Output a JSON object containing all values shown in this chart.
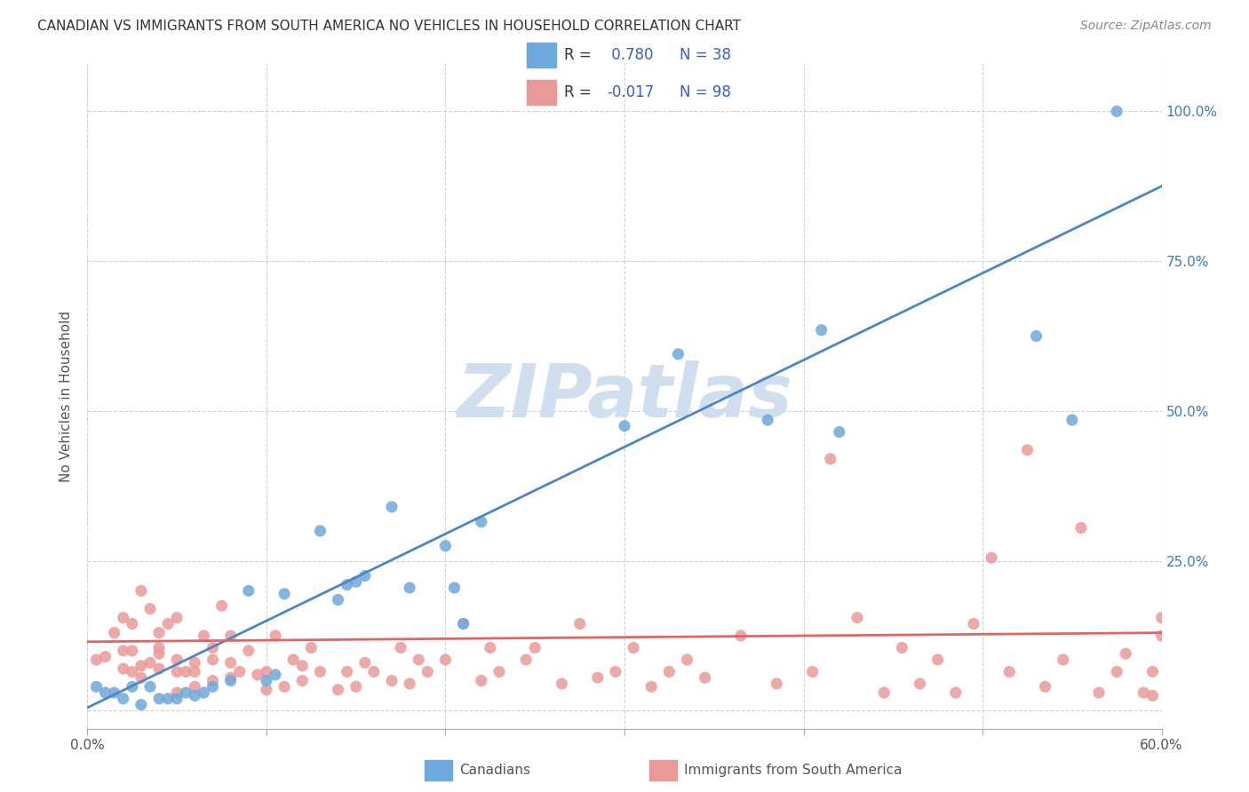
{
  "title": "CANADIAN VS IMMIGRANTS FROM SOUTH AMERICA NO VEHICLES IN HOUSEHOLD CORRELATION CHART",
  "source": "Source: ZipAtlas.com",
  "ylabel": "No Vehicles in Household",
  "x_min": 0.0,
  "x_max": 0.6,
  "y_min": -0.03,
  "y_max": 1.08,
  "x_ticks": [
    0.0,
    0.1,
    0.2,
    0.3,
    0.4,
    0.5,
    0.6
  ],
  "x_tick_labels": [
    "0.0%",
    "",
    "",
    "",
    "",
    "",
    "60.0%"
  ],
  "y_ticks": [
    0.0,
    0.25,
    0.5,
    0.75,
    1.0
  ],
  "y_tick_labels_right": [
    "",
    "25.0%",
    "50.0%",
    "75.0%",
    "100.0%"
  ],
  "canadians_R": 0.78,
  "canadians_N": 38,
  "immigrants_R": -0.017,
  "immigrants_N": 98,
  "canadian_color": "#6fa8dc",
  "immigrant_color": "#ea9999",
  "canadian_line_color": "#4a86c8",
  "immigrant_line_color": "#e06666",
  "background_color": "#ffffff",
  "watermark_text": "ZIPatlas",
  "watermark_color": "#d0dff0",
  "legend_R_color": "#3a5cc5",
  "canadians_x": [
    0.005,
    0.01,
    0.015,
    0.02,
    0.025,
    0.03,
    0.035,
    0.04,
    0.045,
    0.05,
    0.055,
    0.06,
    0.065,
    0.07,
    0.08,
    0.09,
    0.1,
    0.105,
    0.11,
    0.13,
    0.14,
    0.145,
    0.15,
    0.155,
    0.17,
    0.18,
    0.2,
    0.205,
    0.21,
    0.22,
    0.3,
    0.33,
    0.38,
    0.41,
    0.42,
    0.53,
    0.55,
    0.575
  ],
  "canadians_y": [
    0.04,
    0.03,
    0.03,
    0.02,
    0.04,
    0.01,
    0.04,
    0.02,
    0.02,
    0.02,
    0.03,
    0.025,
    0.03,
    0.04,
    0.05,
    0.2,
    0.05,
    0.06,
    0.195,
    0.3,
    0.185,
    0.21,
    0.215,
    0.225,
    0.34,
    0.205,
    0.275,
    0.205,
    0.145,
    0.315,
    0.475,
    0.595,
    0.485,
    0.635,
    0.465,
    0.625,
    0.485,
    1.0
  ],
  "immigrants_x": [
    0.005,
    0.01,
    0.015,
    0.02,
    0.02,
    0.02,
    0.025,
    0.025,
    0.025,
    0.03,
    0.03,
    0.03,
    0.035,
    0.035,
    0.04,
    0.04,
    0.04,
    0.04,
    0.045,
    0.05,
    0.05,
    0.05,
    0.05,
    0.055,
    0.06,
    0.06,
    0.06,
    0.065,
    0.07,
    0.07,
    0.07,
    0.075,
    0.08,
    0.08,
    0.08,
    0.085,
    0.09,
    0.095,
    0.1,
    0.1,
    0.105,
    0.11,
    0.115,
    0.12,
    0.12,
    0.125,
    0.13,
    0.14,
    0.145,
    0.15,
    0.155,
    0.16,
    0.17,
    0.175,
    0.18,
    0.185,
    0.19,
    0.2,
    0.21,
    0.22,
    0.225,
    0.23,
    0.245,
    0.25,
    0.265,
    0.275,
    0.285,
    0.295,
    0.305,
    0.315,
    0.325,
    0.335,
    0.345,
    0.365,
    0.385,
    0.405,
    0.415,
    0.43,
    0.445,
    0.455,
    0.465,
    0.475,
    0.485,
    0.495,
    0.505,
    0.515,
    0.525,
    0.535,
    0.545,
    0.555,
    0.565,
    0.575,
    0.58,
    0.59,
    0.595,
    0.595,
    0.6,
    0.6
  ],
  "immigrants_y": [
    0.085,
    0.09,
    0.13,
    0.07,
    0.1,
    0.155,
    0.065,
    0.145,
    0.1,
    0.055,
    0.075,
    0.2,
    0.08,
    0.17,
    0.07,
    0.095,
    0.105,
    0.13,
    0.145,
    0.03,
    0.065,
    0.085,
    0.155,
    0.065,
    0.04,
    0.065,
    0.08,
    0.125,
    0.05,
    0.085,
    0.105,
    0.175,
    0.055,
    0.08,
    0.125,
    0.065,
    0.1,
    0.06,
    0.035,
    0.065,
    0.125,
    0.04,
    0.085,
    0.05,
    0.075,
    0.105,
    0.065,
    0.035,
    0.065,
    0.04,
    0.08,
    0.065,
    0.05,
    0.105,
    0.045,
    0.085,
    0.065,
    0.085,
    0.145,
    0.05,
    0.105,
    0.065,
    0.085,
    0.105,
    0.045,
    0.145,
    0.055,
    0.065,
    0.105,
    0.04,
    0.065,
    0.085,
    0.055,
    0.125,
    0.045,
    0.065,
    0.42,
    0.155,
    0.03,
    0.105,
    0.045,
    0.085,
    0.03,
    0.145,
    0.255,
    0.065,
    0.435,
    0.04,
    0.085,
    0.305,
    0.03,
    0.065,
    0.095,
    0.03,
    0.065,
    0.025,
    0.125,
    0.155
  ],
  "canadian_trend_x": [
    0.0,
    0.6
  ],
  "canadian_trend_y": [
    0.005,
    0.875
  ],
  "immigrant_trend_x": [
    0.0,
    0.6
  ],
  "immigrant_trend_y": [
    0.115,
    0.13
  ]
}
